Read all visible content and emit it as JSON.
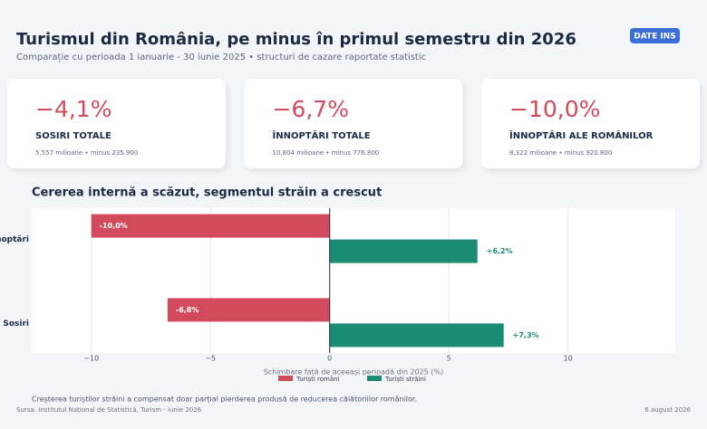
{
  "header": {
    "title": "Turismul din România, pe minus în primul semestru din 2026",
    "subtitle": "Comparație cu perioada 1 ianuarie - 30 iunie 2025 • structuri de cazare raportate statistic",
    "button": "DATE INS"
  },
  "cards": [
    {
      "value": "−4,1%",
      "label": "SOSIRI TOTALE",
      "detail": "5,557 milioane • minus 235.900"
    },
    {
      "value": "−6,7%",
      "label": "ÎNNOPTĂRI TOTALE",
      "detail": "10,804 milioane • minus 776.800"
    },
    {
      "value": "−10,0%",
      "label": "ÎNNOPTĂRI ALE ROMÂNILOR",
      "detail": "8,322 milioane • minus 920.800"
    }
  ],
  "chart_data": {
    "type": "hbar",
    "title": "Cererea internă a scăzut, segmentul străin a crescut",
    "categories": [
      "Înnoptări",
      "Sosiri"
    ],
    "series": [
      {
        "name": "Turiști români",
        "color": "#d14b5c",
        "values": [
          -10.0,
          -6.8
        ],
        "value_labels": [
          "-10,0%",
          "-6,8%"
        ]
      },
      {
        "name": "Turiști străini",
        "color": "#1a8c73",
        "values": [
          6.2,
          7.3
        ],
        "value_labels": [
          "+6,2%",
          "+7,3%"
        ]
      }
    ],
    "xlim": [
      -12.5,
      14.5
    ],
    "xticks": [
      {
        "value": -10,
        "label": "−10"
      },
      {
        "value": -5,
        "label": "−5"
      },
      0,
      5,
      10
    ],
    "xlabel": "Schimbare față de aceeași perioadă din 2025 (%)",
    "grid": true
  },
  "footer": {
    "note": "Creșterea turiștilor străini a compensat doar parțial pierderea produsă de reducerea călătoriilor românilor.",
    "source": "Sursa: Institutul Național de Statistică, Turism - iunie 2026",
    "date": "6 august 2026"
  }
}
